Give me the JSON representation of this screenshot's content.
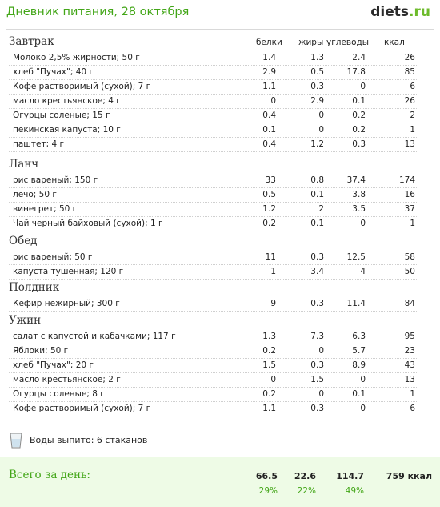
{
  "header": {
    "title": "Дневник питания, 28 октября",
    "logo_main": "diets",
    "logo_suffix": ".ru"
  },
  "columns": [
    "белки",
    "жиры",
    "углеводы",
    "ккал"
  ],
  "meals": [
    {
      "name": "Завтрак",
      "items": [
        {
          "food": "Молоко 2,5% жирности; 50 г",
          "protein": "1.4",
          "fat": "1.3",
          "carbs": "2.4",
          "kcal": "26"
        },
        {
          "food": "хлеб \"Пучах\"; 40 г",
          "protein": "2.9",
          "fat": "0.5",
          "carbs": "17.8",
          "kcal": "85"
        },
        {
          "food": "Кофе растворимый (сухой); 7 г",
          "protein": "1.1",
          "fat": "0.3",
          "carbs": "0",
          "kcal": "6"
        },
        {
          "food": "масло крестьянское; 4 г",
          "protein": "0",
          "fat": "2.9",
          "carbs": "0.1",
          "kcal": "26"
        },
        {
          "food": "Огурцы соленые; 15 г",
          "protein": "0.4",
          "fat": "0",
          "carbs": "0.2",
          "kcal": "2"
        },
        {
          "food": "пекинская капуста; 10 г",
          "protein": "0.1",
          "fat": "0",
          "carbs": "0.2",
          "kcal": "1"
        },
        {
          "food": "паштет; 4 г",
          "protein": "0.4",
          "fat": "1.2",
          "carbs": "0.3",
          "kcal": "13"
        }
      ]
    },
    {
      "name": "Ланч",
      "items": [
        {
          "food": "рис вареный; 150 г",
          "protein": "33",
          "fat": "0.8",
          "carbs": "37.4",
          "kcal": "174"
        },
        {
          "food": "лечо; 50 г",
          "protein": "0.5",
          "fat": "0.1",
          "carbs": "3.8",
          "kcal": "16"
        },
        {
          "food": "винегрет; 50 г",
          "protein": "1.2",
          "fat": "2",
          "carbs": "3.5",
          "kcal": "37"
        },
        {
          "food": "Чай черный байховый (сухой); 1 г",
          "protein": "0.2",
          "fat": "0.1",
          "carbs": "0",
          "kcal": "1"
        }
      ]
    },
    {
      "name": "Обед",
      "items": [
        {
          "food": "рис вареный; 50 г",
          "protein": "11",
          "fat": "0.3",
          "carbs": "12.5",
          "kcal": "58"
        },
        {
          "food": "капуста тушенная; 120 г",
          "protein": "1",
          "fat": "3.4",
          "carbs": "4",
          "kcal": "50"
        }
      ]
    },
    {
      "name": "Полдник",
      "items": [
        {
          "food": "Кефир нежирный; 300 г",
          "protein": "9",
          "fat": "0.3",
          "carbs": "11.4",
          "kcal": "84"
        }
      ]
    },
    {
      "name": "Ужин",
      "items": [
        {
          "food": "салат с капустой и кабачками; 117 г",
          "protein": "1.3",
          "fat": "7.3",
          "carbs": "6.3",
          "kcal": "95"
        },
        {
          "food": "Яблоки; 50 г",
          "protein": "0.2",
          "fat": "0",
          "carbs": "5.7",
          "kcal": "23"
        },
        {
          "food": "хлеб \"Пучах\"; 20 г",
          "protein": "1.5",
          "fat": "0.3",
          "carbs": "8.9",
          "kcal": "43"
        },
        {
          "food": "масло крестьянское; 2 г",
          "protein": "0",
          "fat": "1.5",
          "carbs": "0",
          "kcal": "13"
        },
        {
          "food": "Огурцы соленые; 8 г",
          "protein": "0.2",
          "fat": "0",
          "carbs": "0.1",
          "kcal": "1"
        },
        {
          "food": "Кофе растворимый (сухой); 7 г",
          "protein": "1.1",
          "fat": "0.3",
          "carbs": "0",
          "kcal": "6"
        }
      ]
    }
  ],
  "water": {
    "text": "Воды выпито: 6 стаканов"
  },
  "total": {
    "label": "Всего за день:",
    "protein": "66.5",
    "fat": "22.6",
    "carbs": "114.7",
    "kcal": "759 ккал",
    "protein_pct": "29%",
    "fat_pct": "22%",
    "carbs_pct": "49%"
  },
  "colors": {
    "accent": "#43a618",
    "total_bg": "#eefbe6"
  }
}
